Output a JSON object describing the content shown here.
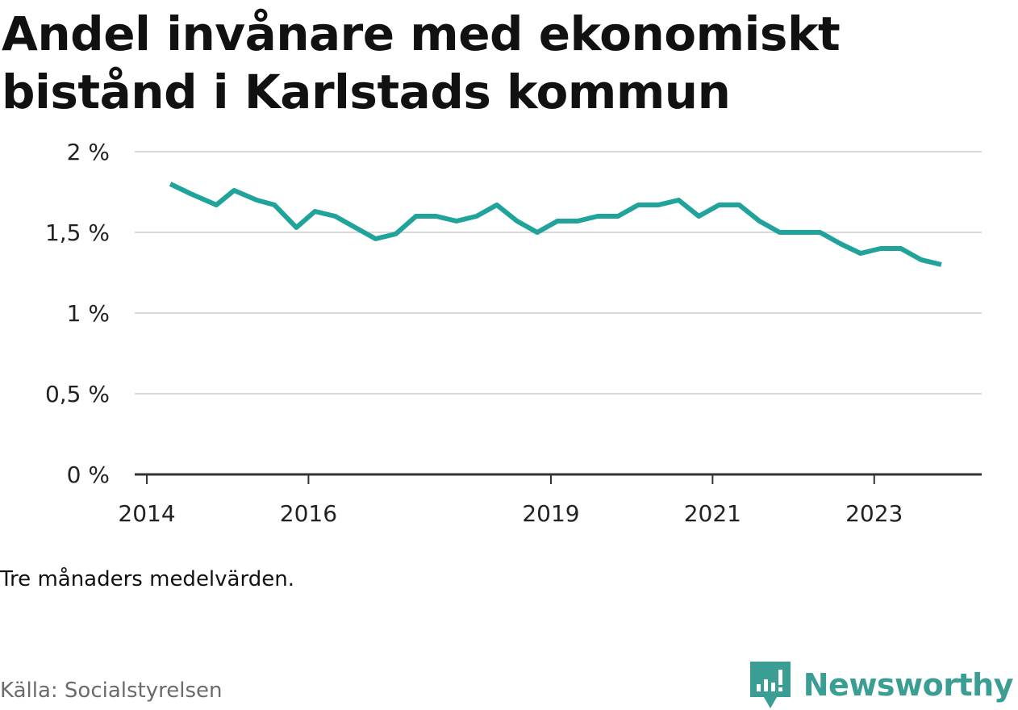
{
  "header": {
    "title": "Andel invånare med ekonomiskt bistånd i Karlstads kommun"
  },
  "footer": {
    "note": "Tre månaders medelvärden.",
    "source": "Källa: Socialstyrelsen",
    "brand": "Newsworthy"
  },
  "colors": {
    "line": "#1fa39a",
    "grid": "#d9d9d9",
    "axis": "#333333",
    "brand": "#3a9e95"
  },
  "chart_data": {
    "type": "line",
    "title": "Andel invånare med ekonomiskt bistånd i Karlstads kommun",
    "xlabel": "",
    "ylabel": "",
    "y_ticks": [
      {
        "value": 0,
        "label": "0 %"
      },
      {
        "value": 0.5,
        "label": "0,5 %"
      },
      {
        "value": 1,
        "label": "1 %"
      },
      {
        "value": 1.5,
        "label": "1,5 %"
      },
      {
        "value": 2,
        "label": "2 %"
      }
    ],
    "x_ticks": [
      {
        "value": 2014.0,
        "label": "2014"
      },
      {
        "value": 2016.0,
        "label": "2016"
      },
      {
        "value": 2019.0,
        "label": "2019"
      },
      {
        "value": 2021.0,
        "label": "2021"
      },
      {
        "value": 2023.0,
        "label": "2023"
      }
    ],
    "xlim": [
      2013.85,
      2024.33
    ],
    "ylim": [
      0,
      2
    ],
    "grid": true,
    "series": [
      {
        "values": [
          [
            2014.29,
            1.8
          ],
          [
            2014.54,
            1.74
          ],
          [
            2014.86,
            1.67
          ],
          [
            2015.08,
            1.76
          ],
          [
            2015.36,
            1.7
          ],
          [
            2015.58,
            1.67
          ],
          [
            2015.85,
            1.53
          ],
          [
            2016.08,
            1.63
          ],
          [
            2016.33,
            1.6
          ],
          [
            2016.58,
            1.53
          ],
          [
            2016.83,
            1.46
          ],
          [
            2017.08,
            1.49
          ],
          [
            2017.33,
            1.6
          ],
          [
            2017.58,
            1.6
          ],
          [
            2017.83,
            1.57
          ],
          [
            2018.08,
            1.6
          ],
          [
            2018.33,
            1.67
          ],
          [
            2018.58,
            1.57
          ],
          [
            2018.83,
            1.5
          ],
          [
            2019.08,
            1.57
          ],
          [
            2019.33,
            1.57
          ],
          [
            2019.58,
            1.6
          ],
          [
            2019.83,
            1.6
          ],
          [
            2020.08,
            1.67
          ],
          [
            2020.33,
            1.67
          ],
          [
            2020.58,
            1.7
          ],
          [
            2020.83,
            1.6
          ],
          [
            2021.08,
            1.67
          ],
          [
            2021.33,
            1.67
          ],
          [
            2021.58,
            1.57
          ],
          [
            2021.83,
            1.5
          ],
          [
            2022.08,
            1.5
          ],
          [
            2022.33,
            1.5
          ],
          [
            2022.58,
            1.43
          ],
          [
            2022.83,
            1.37
          ],
          [
            2023.08,
            1.4
          ],
          [
            2023.33,
            1.4
          ],
          [
            2023.58,
            1.33
          ],
          [
            2023.83,
            1.3
          ]
        ]
      }
    ]
  }
}
